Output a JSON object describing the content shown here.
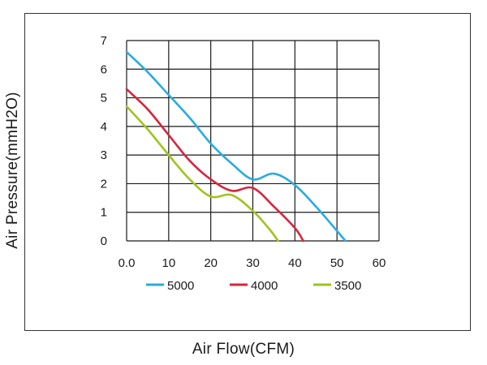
{
  "chart_data": {
    "type": "line",
    "xlabel": "Air Flow(CFM)",
    "ylabel": "Air Pressure(mmH2O)",
    "xlim": [
      0,
      60
    ],
    "ylim": [
      0,
      7
    ],
    "x_ticks": [
      "0.0",
      "10",
      "20",
      "30",
      "40",
      "50",
      "60"
    ],
    "y_ticks": [
      "0",
      "1",
      "2",
      "3",
      "4",
      "5",
      "6",
      "7"
    ],
    "grid": true,
    "legend_position": "bottom",
    "series": [
      {
        "name": "5000",
        "color": "#29abe2",
        "points": [
          [
            0,
            6.6
          ],
          [
            5,
            5.9
          ],
          [
            10,
            5.1
          ],
          [
            15,
            4.3
          ],
          [
            20,
            3.4
          ],
          [
            25,
            2.7
          ],
          [
            30,
            2.15
          ],
          [
            35,
            2.35
          ],
          [
            40,
            1.95
          ],
          [
            45,
            1.2
          ],
          [
            50,
            0.35
          ],
          [
            52,
            0.0
          ]
        ]
      },
      {
        "name": "4000",
        "color": "#d7263d",
        "points": [
          [
            0,
            5.3
          ],
          [
            5,
            4.6
          ],
          [
            10,
            3.7
          ],
          [
            15,
            2.8
          ],
          [
            20,
            2.15
          ],
          [
            25,
            1.75
          ],
          [
            30,
            1.85
          ],
          [
            35,
            1.2
          ],
          [
            40,
            0.45
          ],
          [
            42,
            0.0
          ]
        ]
      },
      {
        "name": "3500",
        "color": "#9ec41c",
        "points": [
          [
            0,
            4.7
          ],
          [
            5,
            3.9
          ],
          [
            10,
            3.0
          ],
          [
            15,
            2.15
          ],
          [
            20,
            1.55
          ],
          [
            25,
            1.6
          ],
          [
            30,
            1.05
          ],
          [
            34,
            0.4
          ],
          [
            36,
            0.0
          ]
        ]
      }
    ]
  }
}
